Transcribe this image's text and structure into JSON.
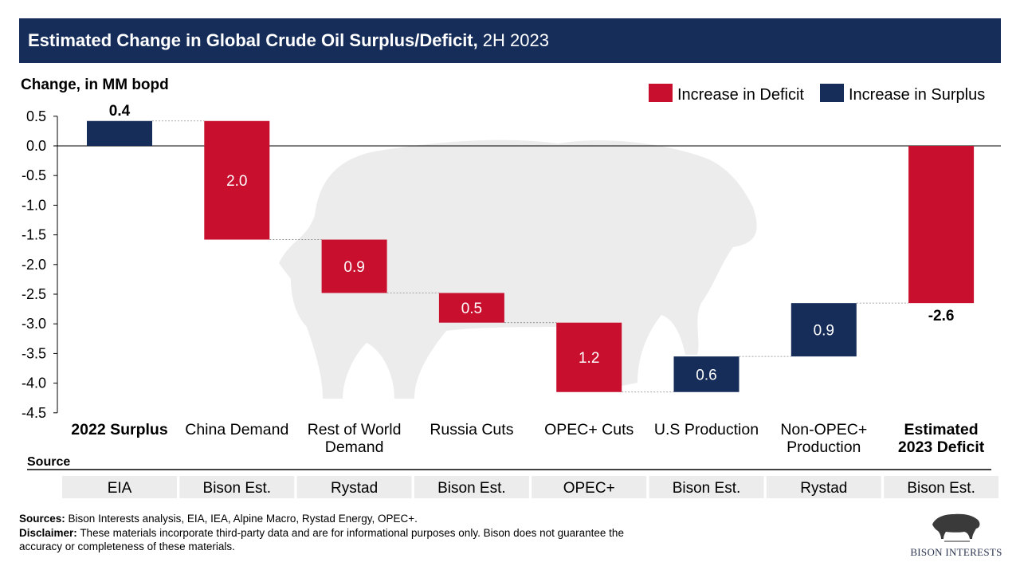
{
  "header": {
    "title_bold": "Estimated Change in Global Crude Oil Surplus/Deficit,",
    "title_rest": "2H 2023"
  },
  "chart_data": {
    "type": "waterfall",
    "ylabel": "Change, in MM bopd",
    "ylim": [
      -4.5,
      0.5
    ],
    "yticks": [
      "0.5",
      "0.0",
      "-0.5",
      "-1.0",
      "-1.5",
      "-2.0",
      "-2.5",
      "-3.0",
      "-3.5",
      "-4.0",
      "-4.5"
    ],
    "ytick_values": [
      0.5,
      0,
      -0.5,
      -1,
      -1.5,
      -2,
      -2.5,
      -3,
      -3.5,
      -4,
      -4.5
    ],
    "legend": [
      {
        "label": "Increase in Deficit",
        "color": "#c8102e"
      },
      {
        "label": "Increase in Surplus",
        "color": "#162d5a"
      }
    ],
    "legend_position": "top-right",
    "categories": [
      {
        "label": [
          "2022 Surplus"
        ],
        "bold": true,
        "start": 0,
        "end": 0.42,
        "kind": "surplus",
        "data_label": "0.4",
        "label_pos": "above",
        "source": "EIA"
      },
      {
        "label": [
          "China Demand"
        ],
        "bold": false,
        "start": 0.42,
        "end": -1.58,
        "kind": "deficit",
        "data_label": "2.0",
        "label_pos": "inside",
        "source": "Bison Est."
      },
      {
        "label": [
          "Rest of World",
          "Demand"
        ],
        "bold": false,
        "start": -1.58,
        "end": -2.48,
        "kind": "deficit",
        "data_label": "0.9",
        "label_pos": "inside",
        "source": "Rystad"
      },
      {
        "label": [
          "Russia Cuts"
        ],
        "bold": false,
        "start": -2.48,
        "end": -2.98,
        "kind": "deficit",
        "data_label": "0.5",
        "label_pos": "inside",
        "source": "Bison Est."
      },
      {
        "label": [
          "OPEC+ Cuts"
        ],
        "bold": false,
        "start": -2.98,
        "end": -4.15,
        "kind": "deficit",
        "data_label": "1.2",
        "label_pos": "inside",
        "source": "OPEC+"
      },
      {
        "label": [
          "U.S Production"
        ],
        "bold": false,
        "start": -4.15,
        "end": -3.55,
        "kind": "surplus",
        "data_label": "0.6",
        "label_pos": "inside",
        "source": "Bison Est."
      },
      {
        "label": [
          "Non-OPEC+",
          "Production"
        ],
        "bold": false,
        "start": -3.55,
        "end": -2.65,
        "kind": "surplus",
        "data_label": "0.9",
        "label_pos": "inside",
        "source": "Rystad"
      },
      {
        "label": [
          "Estimated",
          "2023 Deficit"
        ],
        "bold": true,
        "start": 0,
        "end": -2.65,
        "kind": "deficit",
        "data_label": "-2.6",
        "label_pos": "below",
        "source": "Bison Est."
      }
    ],
    "source_row_label": "Source"
  },
  "footer": {
    "sources_label": "Sources:",
    "sources_text": "Bison Interests analysis, EIA, IEA, Alpine Macro, Rystad Energy, OPEC+.",
    "disclaimer_label": "Disclaimer:",
    "disclaimer_text": "These materials incorporate third-party data and are for informational purposes only. Bison does not guarantee the accuracy or completeness of these materials."
  },
  "logo": {
    "text": "BISON INTERESTS"
  }
}
